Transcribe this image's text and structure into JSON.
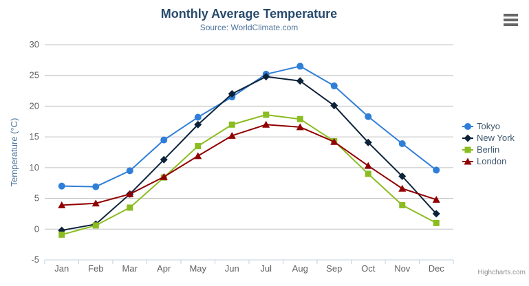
{
  "chart_data": {
    "type": "line",
    "title": "Monthly Average Temperature",
    "subtitle": "Source: WorldClimate.com",
    "categories": [
      "Jan",
      "Feb",
      "Mar",
      "Apr",
      "May",
      "Jun",
      "Jul",
      "Aug",
      "Sep",
      "Oct",
      "Nov",
      "Dec"
    ],
    "series": [
      {
        "name": "Tokyo",
        "color": "#2f7ed8",
        "marker": "circle",
        "values": [
          7.0,
          6.9,
          9.5,
          14.5,
          18.2,
          21.5,
          25.2,
          26.5,
          23.3,
          18.3,
          13.9,
          9.6
        ]
      },
      {
        "name": "New York",
        "color": "#0d233a",
        "marker": "diamond",
        "values": [
          -0.2,
          0.8,
          5.7,
          11.3,
          17.0,
          22.0,
          24.8,
          24.1,
          20.1,
          14.1,
          8.6,
          2.5
        ]
      },
      {
        "name": "Berlin",
        "color": "#8bbc21",
        "marker": "square",
        "values": [
          -0.9,
          0.6,
          3.5,
          8.4,
          13.5,
          17.0,
          18.6,
          17.9,
          14.3,
          9.0,
          3.9,
          1.0
        ]
      },
      {
        "name": "London",
        "color": "#910000",
        "marker": "triangle",
        "values": [
          3.9,
          4.2,
          5.7,
          8.5,
          11.9,
          15.2,
          17.0,
          16.6,
          14.2,
          10.3,
          6.6,
          4.8
        ]
      }
    ],
    "xlabel": "",
    "ylabel": "Temperature (°C)",
    "ylim": [
      -5,
      30
    ],
    "ytick_step": 5,
    "grid": true,
    "legend_position": "right"
  },
  "credits": {
    "label": "Highcharts.com"
  },
  "export_menu": {
    "icon": "hamburger-icon",
    "tooltip": "Chart context menu"
  },
  "theme": {
    "background": "#ffffff",
    "title_color": "#274b6d",
    "subtitle_color": "#4d759e",
    "axis_title_color": "#4d759e",
    "tick_label_color": "#606060",
    "grid_color": "#c0c0c0",
    "axis_line_color": "#c0d0e0",
    "legend_text_color": "#3e576f",
    "credits_color": "#909090",
    "export_icon_color": "#666666"
  }
}
